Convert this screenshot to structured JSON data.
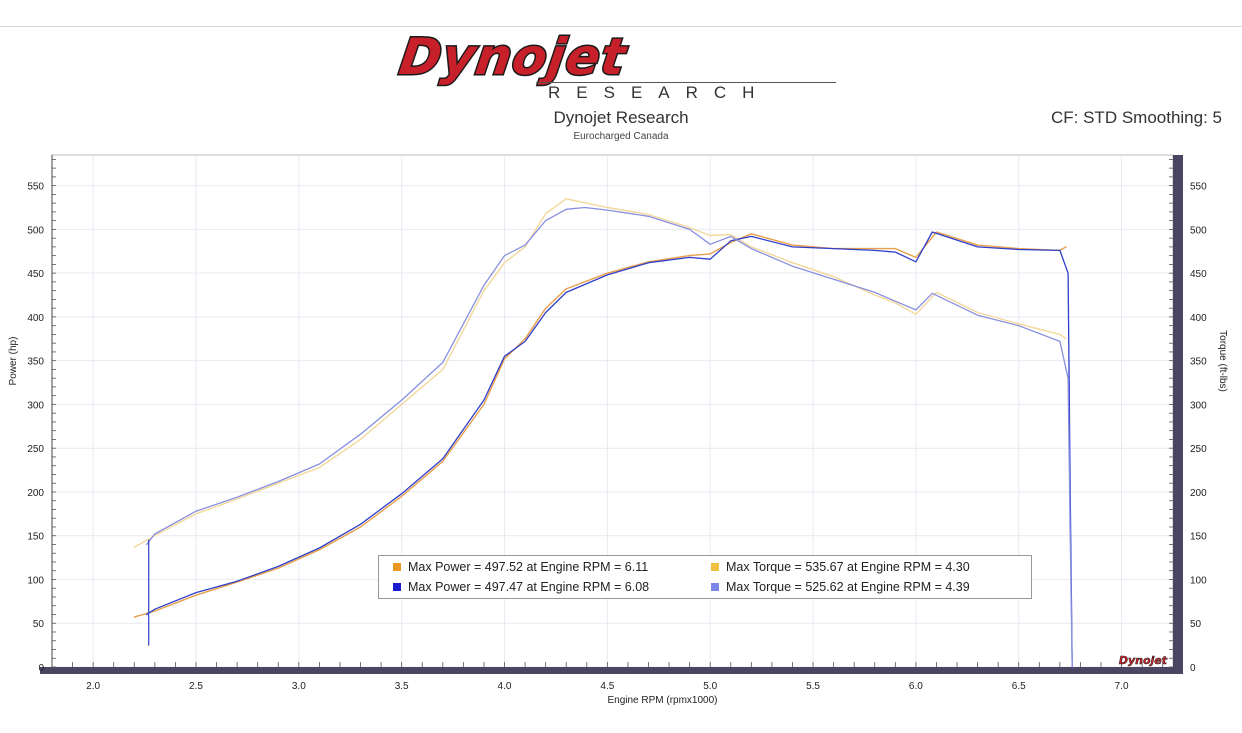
{
  "header": {
    "logo_word": "Dynojet",
    "logo_sub": "RESEARCH",
    "title": "Dynojet Research",
    "subtitle": "Eurocharged Canada",
    "cf_text": "CF: STD Smoothing: 5"
  },
  "colors": {
    "run1_power": "#e8a04a",
    "run1_torque": "#f2d89a",
    "run2_power": "#2f3fcc",
    "run2_torque": "#8890e0",
    "frame": "#4a4560",
    "plot_bg": "#ffffff",
    "grid": "#e9e9f2"
  },
  "legend": {
    "items": [
      {
        "text": "Max Power = 497.52 at Engine RPM = 6.11",
        "color": "#e8981e"
      },
      {
        "text": "Max Torque = 535.67 at Engine RPM = 4.30",
        "color": "#f0c040"
      },
      {
        "text": "Max Power = 497.47 at Engine RPM = 6.08",
        "color": "#1a1ad0"
      },
      {
        "text": "Max Torque = 525.62 at Engine RPM = 4.39",
        "color": "#7b86e6"
      }
    ]
  },
  "watermark": "Dynojet",
  "chart_data": {
    "type": "line",
    "xlabel": "Engine RPM (rpmx1000)",
    "ylabel_left": "Power (hp)",
    "ylabel_right": "Torque (ft-lbs)",
    "xlim": [
      1.8,
      7.25
    ],
    "ylim": [
      0,
      585
    ],
    "x_ticks": [
      "2.0",
      "2.5",
      "3.0",
      "3.5",
      "4.0",
      "4.5",
      "5.0",
      "5.5",
      "6.0",
      "6.5",
      "7.0"
    ],
    "y_ticks": [
      "0",
      "50",
      "100",
      "150",
      "200",
      "250",
      "300",
      "350",
      "400",
      "450",
      "500",
      "550"
    ],
    "grid": true,
    "series": [
      {
        "role": "run1_power",
        "x": [
          2.2,
          2.3,
          2.5,
          2.7,
          2.9,
          3.1,
          3.3,
          3.5,
          3.7,
          3.9,
          4.0,
          4.1,
          4.2,
          4.3,
          4.5,
          4.7,
          4.9,
          5.0,
          5.1,
          5.2,
          5.4,
          5.6,
          5.8,
          5.9,
          6.0,
          6.1,
          6.3,
          6.5,
          6.7,
          6.73
        ],
        "y": [
          57,
          64,
          82,
          97,
          113,
          134,
          160,
          195,
          235,
          300,
          352,
          375,
          410,
          432,
          450,
          463,
          470,
          472,
          485,
          495,
          482,
          478,
          478,
          478,
          468,
          497,
          482,
          478,
          476,
          480
        ]
      },
      {
        "role": "run1_torque",
        "x": [
          2.2,
          2.3,
          2.5,
          2.7,
          2.9,
          3.1,
          3.3,
          3.5,
          3.7,
          3.9,
          4.0,
          4.1,
          4.2,
          4.3,
          4.5,
          4.7,
          4.9,
          5.0,
          5.1,
          5.2,
          5.4,
          5.6,
          5.8,
          5.9,
          6.0,
          6.1,
          6.3,
          6.5,
          6.7,
          6.73
        ],
        "y": [
          137,
          150,
          175,
          192,
          210,
          228,
          260,
          300,
          340,
          430,
          462,
          480,
          518,
          535,
          525,
          517,
          502,
          493,
          494,
          480,
          462,
          446,
          425,
          416,
          403,
          428,
          405,
          392,
          380,
          375
        ]
      },
      {
        "role": "run2_power",
        "x": [
          2.26,
          2.3,
          2.5,
          2.7,
          2.9,
          3.1,
          3.3,
          3.5,
          3.7,
          3.9,
          4.0,
          4.1,
          4.2,
          4.3,
          4.5,
          4.7,
          4.9,
          5.0,
          5.1,
          5.2,
          5.4,
          5.6,
          5.8,
          5.9,
          6.0,
          6.08,
          6.3,
          6.5,
          6.7,
          6.74,
          6.75,
          6.76
        ],
        "y": [
          60,
          66,
          85,
          98,
          115,
          136,
          163,
          198,
          238,
          305,
          355,
          372,
          405,
          428,
          448,
          462,
          468,
          466,
          487,
          492,
          480,
          478,
          476,
          474,
          463,
          497,
          480,
          477,
          476,
          450,
          200,
          0
        ]
      },
      {
        "role": "run2_torque",
        "x": [
          2.26,
          2.3,
          2.5,
          2.7,
          2.9,
          3.1,
          3.3,
          3.5,
          3.7,
          3.9,
          4.0,
          4.1,
          4.2,
          4.3,
          4.39,
          4.5,
          4.7,
          4.9,
          5.0,
          5.1,
          5.2,
          5.4,
          5.6,
          5.8,
          5.9,
          6.0,
          6.08,
          6.3,
          6.5,
          6.7,
          6.74,
          6.75,
          6.76
        ],
        "y": [
          140,
          152,
          178,
          194,
          212,
          232,
          266,
          305,
          348,
          436,
          470,
          482,
          510,
          523,
          525,
          522,
          515,
          500,
          483,
          492,
          478,
          458,
          443,
          428,
          418,
          408,
          427,
          402,
          390,
          372,
          330,
          150,
          0
        ]
      },
      {
        "role": "start_spike",
        "x": [
          2.27,
          2.27
        ],
        "y": [
          25,
          145
        ]
      }
    ]
  }
}
